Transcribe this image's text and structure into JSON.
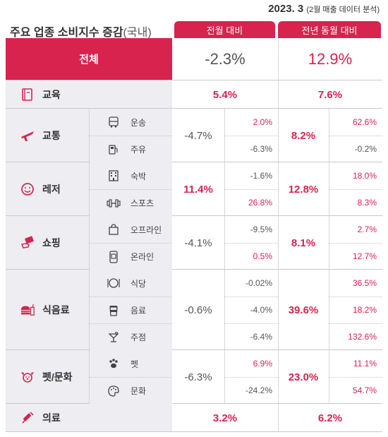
{
  "header": {
    "date": "2023. 3",
    "date_note": "(2월 매출 데이터 분석)",
    "title": "주요 업종 소비지수 증감",
    "title_suffix": "(국내)",
    "col_mom": "전월 대비",
    "col_yoy": "전년 동월 대비"
  },
  "total": {
    "label": "전체",
    "mom": "-2.3%",
    "yoy": "12.9%"
  },
  "education": {
    "label": "교육",
    "icon": "book-icon",
    "mom": "5.4%",
    "yoy": "7.6%"
  },
  "transport": {
    "label": "교통",
    "icon": "airplane-icon",
    "mom": "-4.7%",
    "yoy": "8.2%",
    "subs": [
      {
        "label": "운송",
        "icon": "bus-icon",
        "mom": "2.0%",
        "yoy": "62.6%"
      },
      {
        "label": "주유",
        "icon": "fuel-pump-icon",
        "mom": "-6.3%",
        "yoy": "-0.2%"
      }
    ]
  },
  "leisure": {
    "label": "레저",
    "icon": "smile-icon",
    "mom": "11.4%",
    "yoy": "12.8%",
    "subs": [
      {
        "label": "숙박",
        "icon": "hotel-icon",
        "mom": "-1.6%",
        "yoy": "18.0%"
      },
      {
        "label": "스포츠",
        "icon": "dumbbell-icon",
        "mom": "26.8%",
        "yoy": "8.3%"
      }
    ]
  },
  "shopping": {
    "label": "쇼핑",
    "icon": "card-hand-icon",
    "mom": "-4.1%",
    "yoy": "8.1%",
    "subs": [
      {
        "label": "오프라인",
        "icon": "shopping-bag-icon",
        "mom": "-9.5%",
        "yoy": "2.7%"
      },
      {
        "label": "온라인",
        "icon": "smartphone-icon",
        "mom": "0.5%",
        "yoy": "12.7%"
      }
    ]
  },
  "food": {
    "label": "식음료",
    "icon": "burger-drink-icon",
    "mom": "-0.6%",
    "yoy": "39.6%",
    "subs": [
      {
        "label": "식당",
        "icon": "plate-icon",
        "mom": "-0.02%",
        "yoy": "36.5%"
      },
      {
        "label": "음료",
        "icon": "coffee-cup-icon",
        "mom": "-4.0%",
        "yoy": "18.2%"
      },
      {
        "label": "주점",
        "icon": "cocktail-icon",
        "mom": "-6.4%",
        "yoy": "132.6%"
      }
    ]
  },
  "pet_culture": {
    "label": "펫/문화",
    "icon": "dog-icon",
    "mom": "-6.3%",
    "yoy": "23.0%",
    "subs": [
      {
        "label": "펫",
        "icon": "paw-icon",
        "mom": "6.9%",
        "yoy": "11.1%"
      },
      {
        "label": "문화",
        "icon": "palette-icon",
        "mom": "-24.2%",
        "yoy": "54.7%"
      }
    ]
  },
  "medical": {
    "label": "의료",
    "icon": "syringe-icon",
    "mom": "3.2%",
    "yoy": "6.2%"
  },
  "colors": {
    "accent": "#d7234d",
    "panel": "#eeeef2"
  }
}
